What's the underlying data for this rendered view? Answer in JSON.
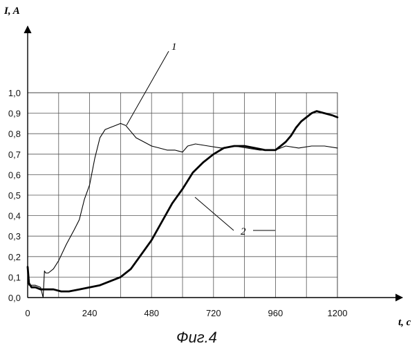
{
  "chart_data": {
    "type": "line",
    "title": "",
    "ylabel": "I, A",
    "xlabel": "t, c",
    "caption": "Фиг.4",
    "xlim": [
      0,
      1200
    ],
    "ylim": [
      0,
      1.0
    ],
    "grid": true,
    "x_ticks": [
      0,
      240,
      480,
      720,
      960,
      1200
    ],
    "x_tick_labels": [
      "0",
      "240",
      "480",
      "720",
      "960",
      "1200"
    ],
    "y_ticks": [
      0,
      0.1,
      0.2,
      0.3,
      0.4,
      0.5,
      0.6,
      0.7,
      0.8,
      0.9,
      1.0
    ],
    "y_tick_labels": [
      "0,0",
      "0,1",
      "0,2",
      "0,3",
      "0,4",
      "0,5",
      "0,6",
      "0,7",
      "0,8",
      "0,9",
      "1,0"
    ],
    "series": [
      {
        "name": "1",
        "stroke": "thin",
        "x": [
          0,
          5,
          15,
          30,
          50,
          60,
          65,
          70,
          80,
          100,
          120,
          150,
          180,
          200,
          220,
          240,
          260,
          280,
          300,
          320,
          340,
          360,
          380,
          400,
          420,
          450,
          480,
          510,
          540,
          570,
          600,
          620,
          650,
          700,
          750,
          800,
          850,
          900,
          960,
          1000,
          1050,
          1100,
          1150,
          1200
        ],
        "y": [
          0.08,
          0.06,
          0.06,
          0.06,
          0.05,
          0.0,
          0.13,
          0.12,
          0.12,
          0.14,
          0.18,
          0.26,
          0.33,
          0.38,
          0.48,
          0.55,
          0.68,
          0.78,
          0.82,
          0.83,
          0.84,
          0.85,
          0.84,
          0.81,
          0.78,
          0.76,
          0.74,
          0.73,
          0.72,
          0.72,
          0.71,
          0.74,
          0.75,
          0.74,
          0.73,
          0.74,
          0.73,
          0.72,
          0.72,
          0.74,
          0.73,
          0.74,
          0.74,
          0.73
        ]
      },
      {
        "name": "2",
        "stroke": "thick",
        "x": [
          0,
          5,
          15,
          30,
          50,
          60,
          70,
          80,
          100,
          130,
          160,
          200,
          240,
          280,
          320,
          360,
          400,
          440,
          480,
          520,
          560,
          600,
          640,
          680,
          720,
          760,
          800,
          840,
          880,
          920,
          960,
          980,
          1000,
          1020,
          1040,
          1060,
          1080,
          1100,
          1120,
          1150,
          1180,
          1200
        ],
        "y": [
          0.15,
          0.07,
          0.05,
          0.05,
          0.04,
          0.04,
          0.04,
          0.04,
          0.04,
          0.03,
          0.03,
          0.04,
          0.05,
          0.06,
          0.08,
          0.1,
          0.14,
          0.21,
          0.28,
          0.37,
          0.46,
          0.53,
          0.61,
          0.66,
          0.7,
          0.73,
          0.74,
          0.74,
          0.73,
          0.72,
          0.72,
          0.74,
          0.76,
          0.79,
          0.83,
          0.86,
          0.88,
          0.9,
          0.91,
          0.9,
          0.89,
          0.88
        ]
      }
    ],
    "annotations": [
      {
        "label": "1",
        "target_series": "1",
        "target_x": 380,
        "target_y": 0.84
      },
      {
        "label": "2",
        "target_series": "2",
        "target_x": 600,
        "target_y": 0.53
      }
    ]
  }
}
